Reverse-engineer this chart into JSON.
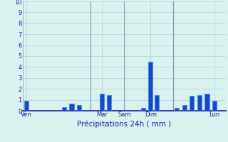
{
  "xlabel": "Précipitations 24h ( mm )",
  "ylim": [
    0,
    10
  ],
  "background_color": "#d8f2f0",
  "plot_bg_color": "#d8f2f0",
  "bar_color_dark": "#1448c8",
  "bar_color_light": "#5090e0",
  "grid_color": "#b8cece",
  "vline_color": "#8898a8",
  "bar_width": 0.6,
  "bar_positions": [
    0.5,
    5.5,
    6.5,
    7.5,
    10.5,
    11.5,
    16.0,
    17.0,
    17.8,
    20.5,
    21.5,
    22.5,
    23.5,
    24.5,
    25.5
  ],
  "bar_heights": [
    0.9,
    0.35,
    0.65,
    0.5,
    1.55,
    1.45,
    0.25,
    4.5,
    1.4,
    0.25,
    0.55,
    1.35,
    1.45,
    1.55,
    0.9
  ],
  "day_labels": [
    "Ven",
    "Mar",
    "Sam",
    "Dim",
    "Lun"
  ],
  "day_tick_positions": [
    0.5,
    10.5,
    13.5,
    17.0,
    25.5
  ],
  "vline_positions": [
    9.0,
    13.5,
    20.0
  ],
  "tick_fontsize": 6.0,
  "label_fontsize": 7.5,
  "xlim": [
    0,
    27
  ],
  "yticks": [
    0,
    1,
    2,
    3,
    4,
    5,
    6,
    7,
    8,
    9,
    10
  ]
}
